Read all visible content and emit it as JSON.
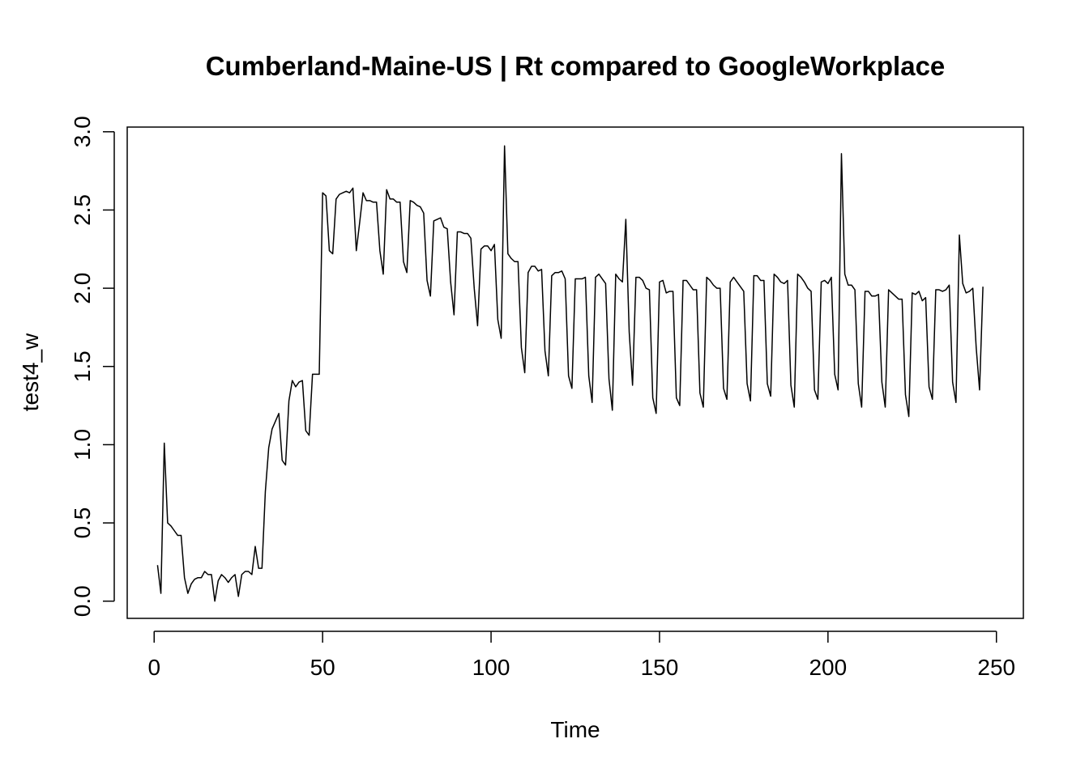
{
  "chart_data": {
    "type": "line",
    "title": "Cumberland-Maine-US | Rt compared to GoogleWorkplace",
    "xlabel": "Time",
    "ylabel": "test4_w",
    "xlim": [
      -8,
      258
    ],
    "ylim": [
      -0.11,
      3.03
    ],
    "x_ticks": [
      0,
      50,
      100,
      150,
      200,
      250
    ],
    "y_ticks": [
      0.0,
      0.5,
      1.0,
      1.5,
      2.0,
      2.5,
      3.0
    ],
    "x_tick_labels": [
      "0",
      "50",
      "100",
      "150",
      "200",
      "250"
    ],
    "y_tick_labels": [
      "0.0",
      "0.5",
      "1.0",
      "1.5",
      "2.0",
      "2.5",
      "3.0"
    ],
    "grid": false,
    "series": [
      {
        "x_start": 1,
        "x_step": 1,
        "values": [
          0.23,
          0.05,
          1.01,
          0.5,
          0.48,
          0.45,
          0.42,
          0.42,
          0.15,
          0.05,
          0.11,
          0.14,
          0.15,
          0.15,
          0.19,
          0.17,
          0.17,
          0.0,
          0.13,
          0.17,
          0.15,
          0.12,
          0.15,
          0.17,
          0.03,
          0.17,
          0.19,
          0.19,
          0.17,
          0.35,
          0.21,
          0.21,
          0.7,
          0.98,
          1.1,
          1.15,
          1.2,
          0.9,
          0.87,
          1.28,
          1.41,
          1.37,
          1.4,
          1.41,
          1.09,
          1.06,
          1.45,
          1.45,
          1.45,
          2.61,
          2.59,
          2.24,
          2.22,
          2.57,
          2.6,
          2.61,
          2.62,
          2.61,
          2.64,
          2.24,
          2.42,
          2.61,
          2.56,
          2.56,
          2.55,
          2.55,
          2.24,
          2.09,
          2.63,
          2.57,
          2.57,
          2.55,
          2.55,
          2.17,
          2.1,
          2.56,
          2.55,
          2.53,
          2.52,
          2.48,
          2.05,
          1.95,
          2.43,
          2.44,
          2.45,
          2.39,
          2.38,
          2.04,
          1.83,
          2.36,
          2.36,
          2.35,
          2.35,
          2.32,
          2.0,
          1.76,
          2.25,
          2.27,
          2.27,
          2.24,
          2.28,
          1.8,
          1.68,
          2.91,
          2.22,
          2.19,
          2.17,
          2.17,
          1.62,
          1.46,
          2.1,
          2.14,
          2.14,
          2.11,
          2.12,
          1.6,
          1.44,
          2.08,
          2.1,
          2.1,
          2.11,
          2.06,
          1.44,
          1.36,
          2.06,
          2.06,
          2.06,
          2.07,
          1.44,
          1.27,
          2.07,
          2.09,
          2.06,
          2.03,
          1.42,
          1.22,
          2.09,
          2.06,
          2.04,
          2.44,
          1.72,
          1.38,
          2.07,
          2.07,
          2.05,
          2.0,
          1.99,
          1.3,
          1.2,
          2.04,
          2.05,
          1.97,
          1.98,
          1.98,
          1.3,
          1.25,
          2.05,
          2.05,
          2.02,
          1.99,
          1.99,
          1.33,
          1.24,
          2.07,
          2.05,
          2.02,
          2.0,
          2.0,
          1.36,
          1.29,
          2.04,
          2.07,
          2.04,
          2.01,
          1.98,
          1.39,
          1.28,
          2.08,
          2.08,
          2.05,
          2.05,
          1.39,
          1.31,
          2.09,
          2.07,
          2.04,
          2.03,
          2.05,
          1.38,
          1.24,
          2.09,
          2.07,
          2.04,
          2.0,
          1.98,
          1.35,
          1.29,
          2.04,
          2.05,
          2.03,
          2.07,
          1.45,
          1.35,
          2.86,
          2.09,
          2.02,
          2.02,
          1.99,
          1.39,
          1.24,
          1.98,
          1.98,
          1.95,
          1.95,
          1.96,
          1.4,
          1.24,
          1.99,
          1.97,
          1.95,
          1.93,
          1.93,
          1.32,
          1.18,
          1.97,
          1.96,
          1.98,
          1.92,
          1.94,
          1.37,
          1.29,
          1.99,
          1.99,
          1.98,
          1.99,
          2.02,
          1.4,
          1.27,
          2.34,
          2.03,
          1.97,
          1.98,
          2.0,
          1.62,
          1.35,
          2.01
        ]
      }
    ]
  }
}
